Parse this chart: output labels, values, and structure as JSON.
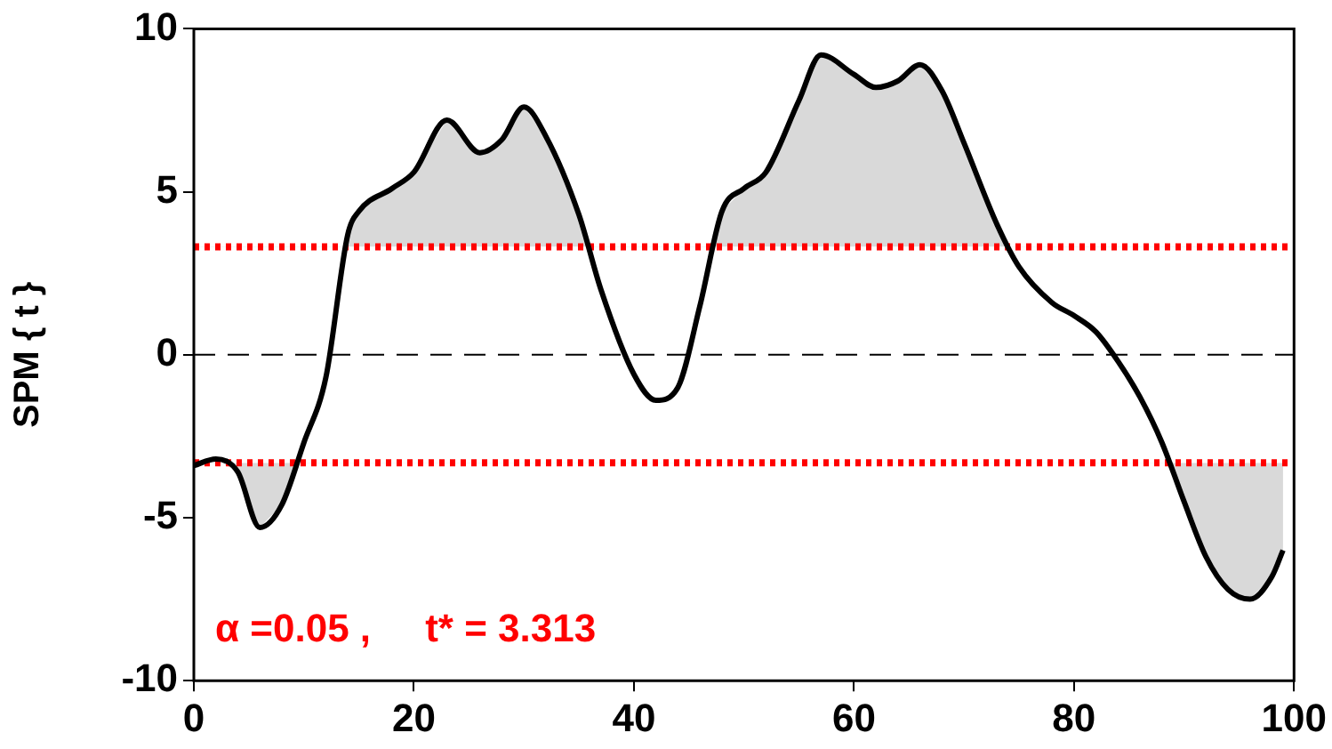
{
  "chart_data": {
    "type": "line",
    "ylabel": "SPM { t }",
    "xlim": [
      0,
      100
    ],
    "xticks": [
      0,
      20,
      40,
      60,
      80,
      100
    ],
    "ylim": [
      -10,
      10
    ],
    "yticks": [
      10,
      5,
      0,
      -5,
      -10
    ],
    "grid": false,
    "legend": false,
    "marker": "none",
    "line_style": "solid",
    "series": [
      {
        "color": "#000000",
        "x": [
          0,
          2,
          4,
          6,
          8,
          10,
          12,
          14,
          15,
          18,
          20,
          23,
          26,
          28,
          30,
          32,
          35,
          37,
          40,
          42,
          44,
          46,
          48,
          50,
          52,
          55,
          57,
          60,
          62,
          64,
          66,
          68,
          70,
          73,
          75,
          78,
          80,
          82,
          84,
          86,
          88,
          90,
          92,
          94,
          96,
          98,
          99
        ],
        "values": [
          -3.4,
          -3.2,
          -3.6,
          -5.3,
          -4.6,
          -2.7,
          -0.7,
          3.7,
          4.4,
          5.1,
          5.6,
          7.2,
          6.2,
          6.6,
          7.6,
          6.7,
          4.3,
          2.0,
          -0.6,
          -1.4,
          -1.0,
          1.5,
          4.4,
          5.1,
          5.6,
          7.8,
          9.2,
          8.6,
          8.2,
          8.4,
          8.9,
          8.1,
          6.5,
          4.0,
          2.7,
          1.6,
          1.2,
          0.7,
          -0.2,
          -1.3,
          -2.7,
          -4.5,
          -6.2,
          -7.2,
          -7.5,
          -6.8,
          -6.0
        ]
      }
    ],
    "ref_lines": [
      {
        "axis": "y",
        "value": 3.313,
        "color": "#ff0000",
        "line_style": "dotted"
      },
      {
        "axis": "y",
        "value": -3.313,
        "color": "#ff0000",
        "line_style": "dotted"
      },
      {
        "axis": "y",
        "value": 0,
        "color": "#000000",
        "line_style": "dashed"
      }
    ],
    "annotations": [
      "α =0.05 ,     t* = 3.313"
    ]
  }
}
